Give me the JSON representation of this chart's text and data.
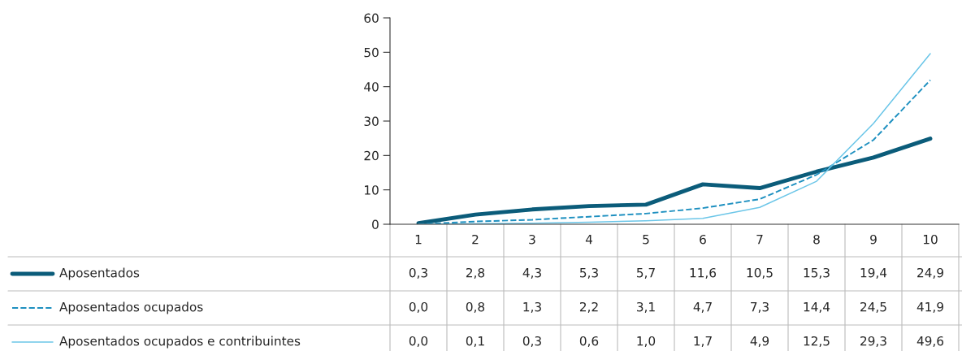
{
  "chart_data": {
    "type": "line",
    "categories": [
      "1",
      "2",
      "3",
      "4",
      "5",
      "6",
      "7",
      "8",
      "9",
      "10"
    ],
    "ylim": [
      0,
      60
    ],
    "yticks": [
      0,
      10,
      20,
      30,
      40,
      50,
      60
    ],
    "grid": false,
    "legend": "bottom left",
    "marker": "none",
    "series": [
      {
        "name": "Aposentados",
        "color": "#0b5c7a",
        "line_style": "solid",
        "values": [
          0.3,
          2.8,
          4.3,
          5.3,
          5.7,
          11.6,
          10.5,
          15.3,
          19.4,
          24.9
        ],
        "value_labels": [
          "0,3",
          "2,8",
          "4,3",
          "5,3",
          "5,7",
          "11,6",
          "10,5",
          "15,3",
          "19,4",
          "24,9"
        ]
      },
      {
        "name": "Aposentados ocupados",
        "color": "#1e90c0",
        "line_style": "dashed",
        "values": [
          0.0,
          0.8,
          1.3,
          2.2,
          3.1,
          4.7,
          7.3,
          14.4,
          24.5,
          41.9
        ],
        "value_labels": [
          "0,0",
          "0,8",
          "1,3",
          "2,2",
          "3,1",
          "4,7",
          "7,3",
          "14,4",
          "24,5",
          "41,9"
        ]
      },
      {
        "name": "Aposentados ocupados e contribuintes",
        "color": "#6cc6e8",
        "line_style": "solid",
        "values": [
          0.0,
          0.1,
          0.3,
          0.6,
          1.0,
          1.7,
          4.9,
          12.5,
          29.3,
          49.6
        ],
        "value_labels": [
          "0,0",
          "0,1",
          "0,3",
          "0,6",
          "1,0",
          "1,7",
          "4,9",
          "12,5",
          "29,3",
          "49,6"
        ]
      }
    ]
  }
}
